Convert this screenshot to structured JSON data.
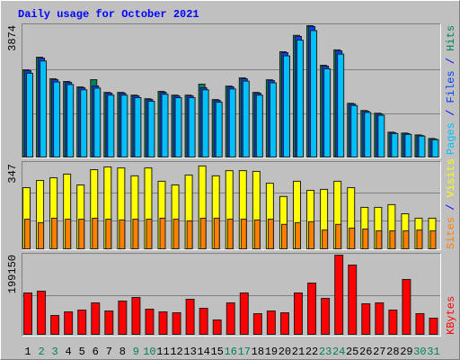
{
  "title": "Daily usage for October 2021",
  "legend_separator": " / ",
  "chart_data": [
    {
      "type": "bar",
      "ylim": [
        0,
        3874
      ],
      "series": [
        {
          "name": "Pages",
          "color": "#00C0FF",
          "values": [
            2480,
            2840,
            2225,
            2150,
            1995,
            2045,
            1840,
            1840,
            1765,
            1660,
            1865,
            1765,
            1765,
            1995,
            1635,
            2020,
            2250,
            1840,
            2200,
            2990,
            3450,
            3730,
            2610,
            3040,
            1535,
            1330,
            1250,
            715,
            690,
            640,
            535
          ]
        },
        {
          "name": "Files",
          "color": "#0040FF",
          "values": [
            2556,
            2925,
            2293,
            2214,
            2056,
            2108,
            1897,
            1897,
            1818,
            1713,
            1924,
            1818,
            1818,
            2056,
            1687,
            2082,
            2319,
            1897,
            2266,
            3083,
            3558,
            3848,
            2688,
            3136,
            1581,
            1370,
            1291,
            738,
            712,
            659,
            553
          ]
        },
        {
          "name": "Hits",
          "color": "#00805C",
          "values": [
            2580,
            2950,
            2320,
            2240,
            2080,
            2293,
            1920,
            1920,
            1840,
            1735,
            1950,
            1840,
            1840,
            2161,
            1710,
            2105,
            2345,
            1920,
            2290,
            3110,
            3590,
            3874,
            2715,
            3165,
            1600,
            1390,
            1310,
            755,
            730,
            675,
            570
          ]
        }
      ]
    },
    {
      "type": "bar",
      "ylim": [
        0,
        347
      ],
      "series": [
        {
          "name": "Sites",
          "color": "#FF8000",
          "values": [
            124,
            110,
            128,
            124,
            124,
            128,
            124,
            121,
            124,
            124,
            128,
            124,
            117,
            128,
            128,
            124,
            124,
            121,
            124,
            103,
            110,
            114,
            80,
            103,
            88,
            84,
            77,
            77,
            77,
            80,
            77
          ]
        },
        {
          "name": "Visits",
          "color": "#FFFF00",
          "values": [
            252,
            281,
            292,
            307,
            263,
            325,
            336,
            332,
            300,
            332,
            278,
            263,
            303,
            340,
            300,
            321,
            321,
            318,
            270,
            216,
            278,
            241,
            245,
            278,
            252,
            172,
            172,
            183,
            146,
            128,
            128
          ]
        }
      ]
    },
    {
      "type": "bar",
      "ylim": [
        0,
        199150
      ],
      "categories": [
        1,
        2,
        3,
        4,
        5,
        6,
        7,
        8,
        9,
        10,
        11,
        12,
        13,
        14,
        15,
        16,
        17,
        18,
        19,
        20,
        21,
        22,
        23,
        24,
        25,
        26,
        27,
        28,
        29,
        30,
        31
      ],
      "category_colors": [
        "#000000",
        "#00805C",
        "#00805C",
        "#000000",
        "#000000",
        "#000000",
        "#000000",
        "#000000",
        "#00805C",
        "#00805C",
        "#000000",
        "#000000",
        "#000000",
        "#000000",
        "#000000",
        "#00805C",
        "#00805C",
        "#000000",
        "#000000",
        "#000000",
        "#000000",
        "#000000",
        "#00805C",
        "#00805C",
        "#000000",
        "#000000",
        "#000000",
        "#000000",
        "#000000",
        "#00805C",
        "#00805C"
      ],
      "series": [
        {
          "name": "KBytes",
          "color": "#FF0000",
          "values": [
            105170,
            109645,
            49228,
            58179,
            62654,
            80555,
            60416,
            85030,
            93980,
            64892,
            58179,
            55941,
            89506,
            67129,
            38040,
            80555,
            105170,
            53703,
            60416,
            55941,
            105170,
            129783,
            91743,
            199150,
            174537,
            78317,
            80555,
            62654,
            138733,
            53703,
            42515
          ]
        }
      ]
    }
  ]
}
